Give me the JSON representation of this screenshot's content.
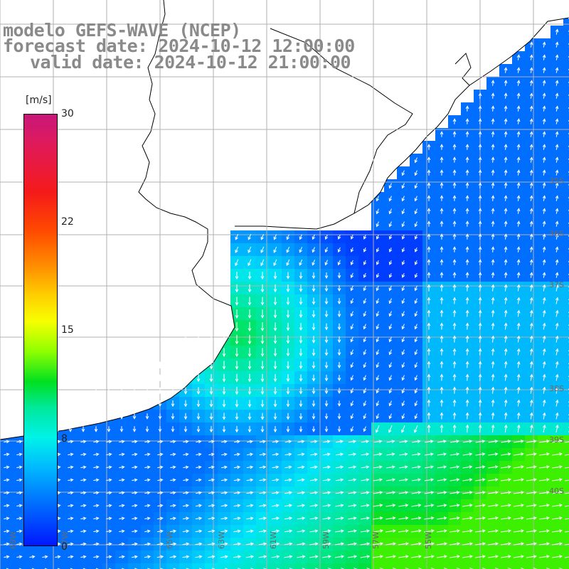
{
  "titles": {
    "line1": "modelo GEFS-WAVE (NCEP)",
    "line2": "forecast date: 2024-10-12 12:00:00",
    "line3": "valid date: 2024-10-12 21:00:00"
  },
  "legend": {
    "unit": "[m/s]",
    "ticks": [
      "30",
      "22",
      "15",
      "8",
      "0"
    ],
    "colors": [
      "#c8177a",
      "#f51a1a",
      "#ff8c00",
      "#f7ff00",
      "#00e020",
      "#00f2e8",
      "#0070ff",
      "#0018ff"
    ]
  },
  "map": {
    "land_color": "#ffffff",
    "coast_color": "#000000",
    "grid_color": "#b0b0b0",
    "arrow_color": "#ffffff",
    "lon_labels": [
      "69W",
      "67W",
      "65W",
      "63W",
      "61W",
      "59W",
      "57W",
      "55W"
    ],
    "lat_labels": [
      "35S",
      "36S",
      "37S",
      "38S",
      "39S",
      "40S"
    ]
  }
}
